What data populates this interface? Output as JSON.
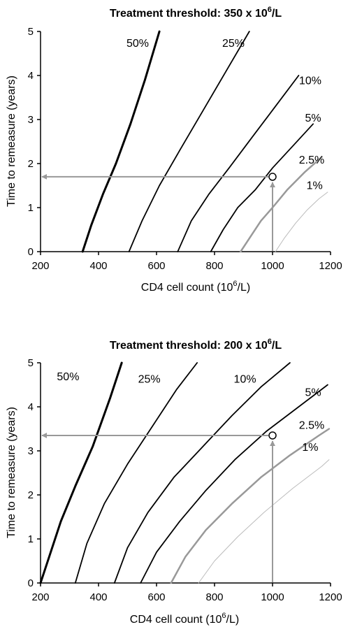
{
  "chart_data": [
    {
      "type": "line",
      "title": "Treatment threshold: 350 x 10",
      "title_sup": "6",
      "title_suffix": "/L",
      "xlabel": "CD4 cell count (10",
      "xlabel_sup": "6",
      "xlabel_suffix": "/L)",
      "ylabel": "Time to remeasure  (years)",
      "xlim": [
        200,
        1200
      ],
      "ylim": [
        0,
        5
      ],
      "x_ticks": [
        "200",
        "400",
        "600",
        "800",
        "1000",
        "1200"
      ],
      "y_ticks": [
        "0",
        "1",
        "2",
        "3",
        "4",
        "5"
      ],
      "colors": {
        "dark": "#000000",
        "gray": "#999999",
        "light": "#bbbbbb"
      },
      "series": [
        {
          "name": "50%",
          "color": "dark",
          "width": 3,
          "x": [
            345,
            375,
            415,
            460,
            510,
            560,
            610
          ],
          "y": [
            0,
            0.6,
            1.3,
            2.0,
            2.9,
            3.9,
            5.0
          ]
        },
        {
          "name": "25%",
          "color": "dark",
          "width": 1.8,
          "x": [
            505,
            550,
            610,
            680,
            760,
            840,
            920
          ],
          "y": [
            0,
            0.7,
            1.5,
            2.3,
            3.2,
            4.1,
            5.0
          ]
        },
        {
          "name": "10%",
          "color": "dark",
          "width": 1.8,
          "x": [
            673,
            720,
            780,
            850,
            930,
            1010,
            1090
          ],
          "y": [
            0,
            0.7,
            1.3,
            1.9,
            2.6,
            3.3,
            4.0
          ]
        },
        {
          "name": "5%",
          "color": "dark",
          "width": 1.8,
          "x": [
            787,
            830,
            880,
            940,
            1000,
            1070,
            1140
          ],
          "y": [
            0,
            0.5,
            1.0,
            1.4,
            1.9,
            2.4,
            2.9
          ]
        },
        {
          "name": "2.5%",
          "color": "gray",
          "width": 2.5,
          "x": [
            890,
            920,
            960,
            1000,
            1050,
            1110,
            1170
          ],
          "y": [
            0,
            0.3,
            0.7,
            1.0,
            1.4,
            1.8,
            2.15
          ]
        },
        {
          "name": "1%",
          "color": "light",
          "width": 1,
          "x": [
            1010,
            1040,
            1080,
            1120,
            1160,
            1190
          ],
          "y": [
            0,
            0.3,
            0.65,
            0.95,
            1.2,
            1.35
          ]
        }
      ],
      "labels": [
        {
          "text": "50%",
          "x": 535,
          "y": 4.65
        },
        {
          "text": "25%",
          "x": 865,
          "y": 4.65
        },
        {
          "text": "10%",
          "x": 1130,
          "y": 3.8
        },
        {
          "text": "5%",
          "x": 1140,
          "y": 2.95
        },
        {
          "text": "2.5%",
          "x": 1135,
          "y": 2.0
        },
        {
          "text": "1%",
          "x": 1145,
          "y": 1.42
        }
      ],
      "marker": {
        "x": 1000,
        "y": 1.7
      }
    },
    {
      "type": "line",
      "title": "Treatment threshold: 200 x 10",
      "title_sup": "6",
      "title_suffix": "/L",
      "xlabel": "CD4 cell count (10",
      "xlabel_sup": "6",
      "xlabel_suffix": "/L)",
      "ylabel": "Time to remeasure  (years)",
      "xlim": [
        200,
        1200
      ],
      "ylim": [
        0,
        5
      ],
      "x_ticks": [
        "200",
        "400",
        "600",
        "800",
        "1000",
        "1200"
      ],
      "y_ticks": [
        "0",
        "1",
        "2",
        "3",
        "4",
        "5"
      ],
      "colors": {
        "dark": "#000000",
        "gray": "#999999",
        "light": "#bbbbbb"
      },
      "series": [
        {
          "name": "50%",
          "color": "dark",
          "width": 3,
          "x": [
            200,
            230,
            270,
            320,
            380,
            440,
            480
          ],
          "y": [
            0,
            0.6,
            1.4,
            2.2,
            3.1,
            4.2,
            5.0
          ]
        },
        {
          "name": "25%",
          "color": "dark",
          "width": 1.8,
          "x": [
            320,
            360,
            420,
            500,
            590,
            670,
            740
          ],
          "y": [
            0,
            0.9,
            1.8,
            2.7,
            3.6,
            4.4,
            5.0
          ]
        },
        {
          "name": "10%",
          "color": "dark",
          "width": 1.8,
          "x": [
            455,
            500,
            570,
            660,
            760,
            860,
            960,
            1060
          ],
          "y": [
            0,
            0.8,
            1.6,
            2.4,
            3.1,
            3.8,
            4.45,
            5.0
          ]
        },
        {
          "name": "5%",
          "color": "dark",
          "width": 1.8,
          "x": [
            545,
            600,
            680,
            770,
            870,
            980,
            1090,
            1190
          ],
          "y": [
            0,
            0.7,
            1.4,
            2.1,
            2.8,
            3.45,
            4.0,
            4.5
          ]
        },
        {
          "name": "2.5%",
          "color": "gray",
          "width": 2.5,
          "x": [
            650,
            700,
            770,
            860,
            960,
            1060,
            1160,
            1195
          ],
          "y": [
            0,
            0.6,
            1.2,
            1.8,
            2.4,
            2.9,
            3.35,
            3.5
          ]
        },
        {
          "name": "1%",
          "color": "light",
          "width": 1,
          "x": [
            745,
            800,
            880,
            970,
            1070,
            1170,
            1195
          ],
          "y": [
            0,
            0.5,
            1.05,
            1.6,
            2.15,
            2.65,
            2.8
          ]
        }
      ],
      "labels": [
        {
          "text": "50%",
          "x": 295,
          "y": 4.6
        },
        {
          "text": "25%",
          "x": 575,
          "y": 4.55
        },
        {
          "text": "10%",
          "x": 905,
          "y": 4.55
        },
        {
          "text": "5%",
          "x": 1140,
          "y": 4.25
        },
        {
          "text": "2.5%",
          "x": 1135,
          "y": 3.5
        },
        {
          "text": "1%",
          "x": 1130,
          "y": 3.0
        }
      ],
      "marker": {
        "x": 1000,
        "y": 3.35
      }
    }
  ]
}
